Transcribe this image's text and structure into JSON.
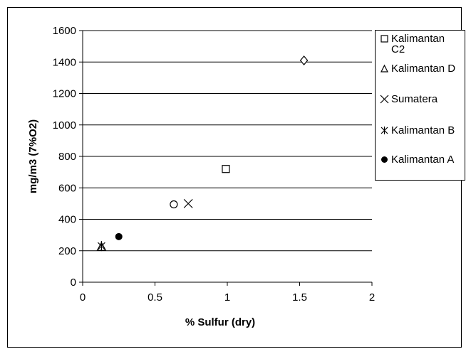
{
  "chart_data": {
    "type": "scatter",
    "title": "",
    "xlabel": "% Sulfur (dry)",
    "ylabel": "mg/m3 (7%O2)",
    "xlim": [
      0,
      2
    ],
    "ylim": [
      0,
      1600
    ],
    "x_ticks": [
      "0",
      "0.5",
      "1",
      "1.5",
      "2"
    ],
    "y_ticks": [
      "0",
      "200",
      "400",
      "600",
      "800",
      "1000",
      "1200",
      "1400",
      "1600"
    ],
    "grid": "horizontal",
    "legend_position": "right",
    "series": [
      {
        "name": "Kalimantan\nC2",
        "marker": "square",
        "color": "#000000",
        "points": [
          [
            0.99,
            720
          ]
        ]
      },
      {
        "name": "Kalimantan D",
        "marker": "triangle",
        "color": "#000000",
        "points": [
          [
            0.13,
            225
          ]
        ]
      },
      {
        "name": "Sumatera",
        "marker": "x",
        "color": "#000000",
        "points": [
          [
            0.73,
            500
          ]
        ]
      },
      {
        "name": "Kalimantan B",
        "marker": "asterisk",
        "color": "#000000",
        "points": [
          [
            0.13,
            230
          ]
        ]
      },
      {
        "name": "Kalimantan A",
        "marker": "filled-circle",
        "color": "#000000",
        "points": [
          [
            0.25,
            290
          ]
        ]
      }
    ],
    "unlabeled_points": [
      {
        "marker": "diamond",
        "x": 1.53,
        "y": 1410
      },
      {
        "marker": "circle",
        "x": 0.63,
        "y": 495
      }
    ]
  }
}
